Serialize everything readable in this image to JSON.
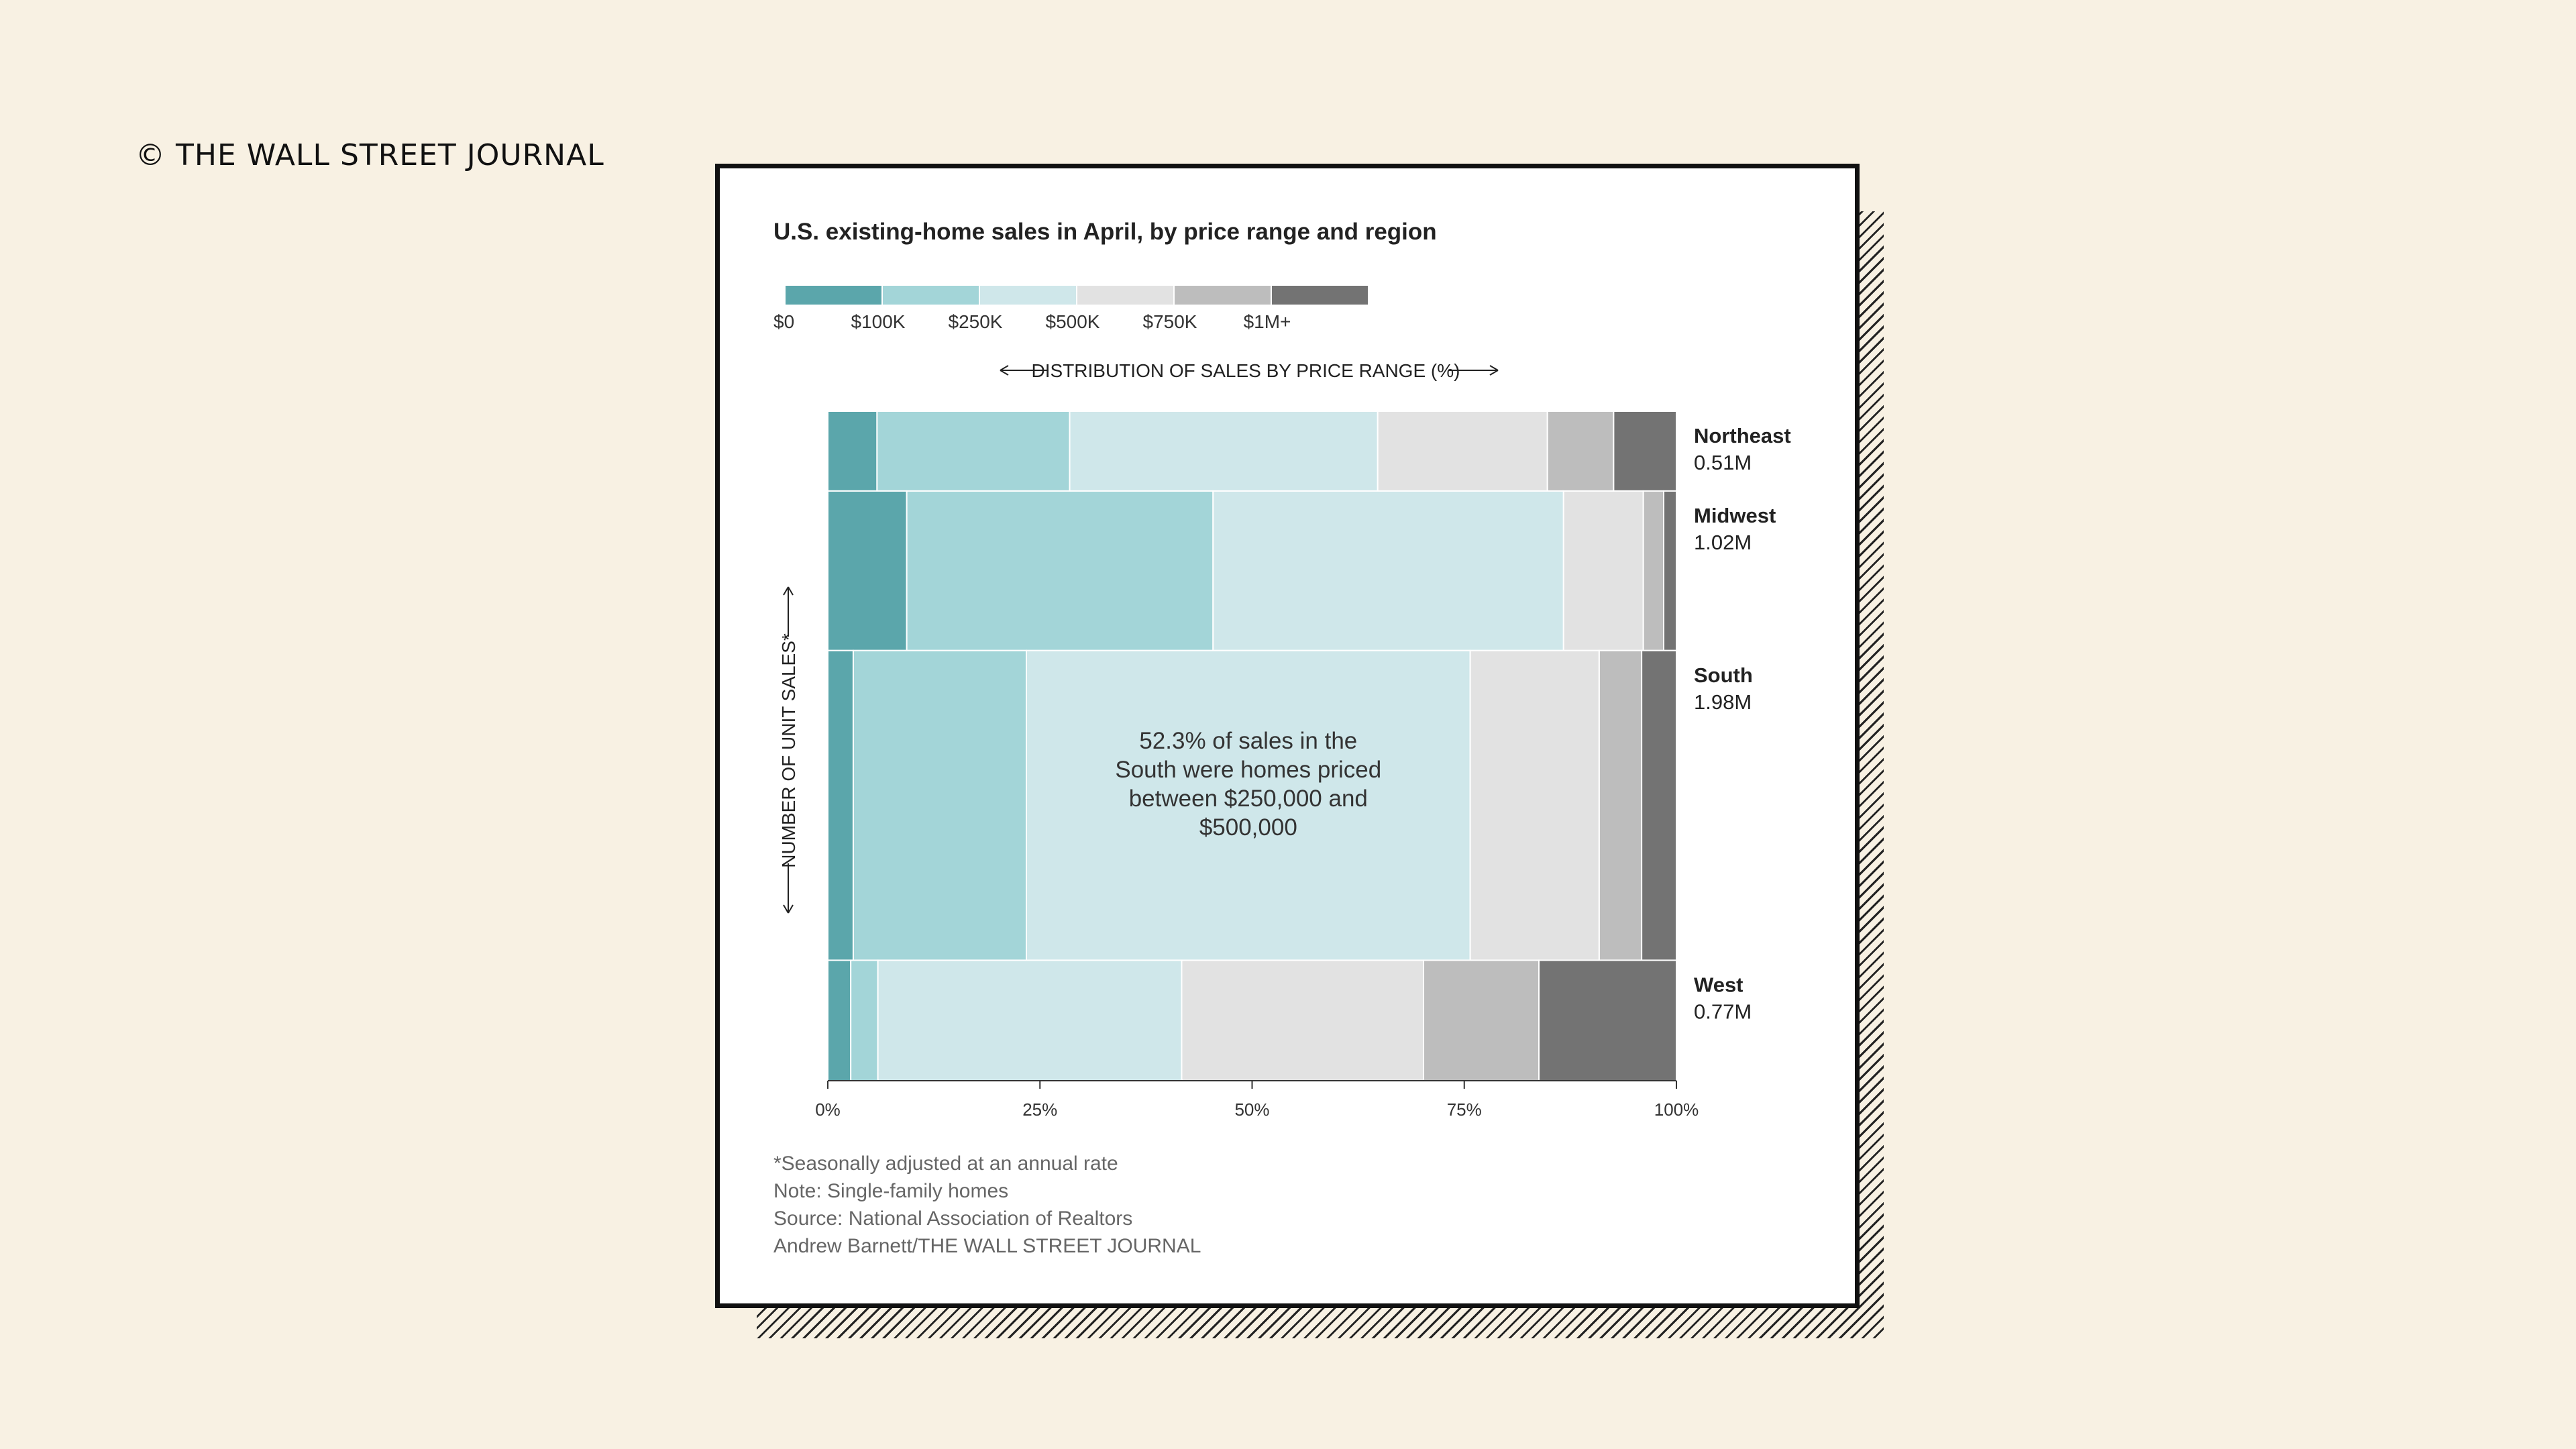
{
  "watermark": "© THE WALL STREET JOURNAL",
  "chart_data": {
    "type": "mosaic",
    "title": "U.S. existing-home sales in April, by price range and region",
    "xlabel": "DISTRIBUTION OF SALES BY PRICE RANGE (%)",
    "ylabel": "NUMBER OF UNIT SALES*",
    "xlim": [
      0,
      100
    ],
    "x_ticks": [
      "0%",
      "25%",
      "50%",
      "75%",
      "100%"
    ],
    "price_ranges": [
      "$0",
      "$100K",
      "$250K",
      "$500K",
      "$750K",
      "$1M+"
    ],
    "colors": [
      "#5ba6ab",
      "#a3d5d8",
      "#cfe7ea",
      "#e2e2e2",
      "#bdbdbd",
      "#737373"
    ],
    "regions": [
      {
        "name": "Northeast",
        "total_label": "0.51M",
        "sales_m": 0.51,
        "shares": [
          5.8,
          22.7,
          36.3,
          20.0,
          7.8,
          7.4
        ]
      },
      {
        "name": "Midwest",
        "total_label": "1.02M",
        "sales_m": 1.02,
        "shares": [
          9.3,
          36.1,
          41.3,
          9.4,
          2.4,
          1.5
        ]
      },
      {
        "name": "South",
        "total_label": "1.98M",
        "sales_m": 1.98,
        "shares": [
          3.0,
          20.4,
          52.3,
          15.2,
          5.0,
          4.1
        ]
      },
      {
        "name": "West",
        "total_label": "0.77M",
        "sales_m": 0.77,
        "shares": [
          2.7,
          3.2,
          35.8,
          28.5,
          13.6,
          16.2
        ]
      }
    ],
    "annotation": [
      "52.3% of sales in the",
      "South were homes priced",
      "between $250,000 and",
      "$500,000"
    ],
    "footnotes": [
      "*Seasonally adjusted at an annual rate",
      "Note: Single-family homes",
      "Source: National Association of Realtors",
      "Andrew Barnett/THE WALL STREET JOURNAL"
    ]
  }
}
